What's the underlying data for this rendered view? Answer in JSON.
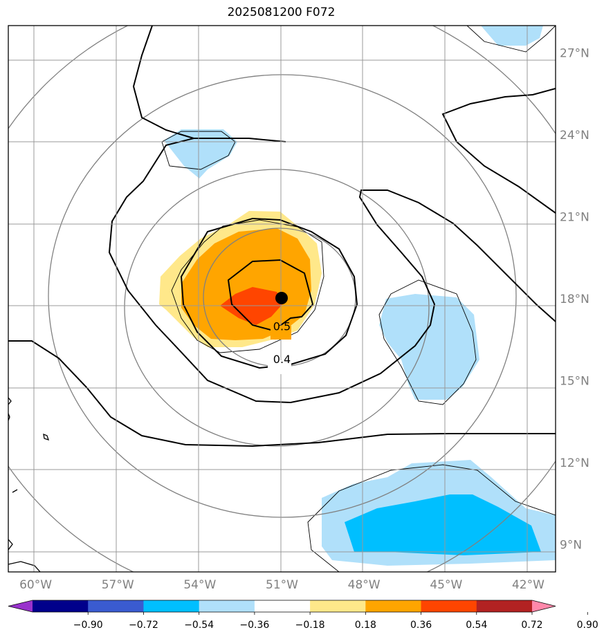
{
  "title": "2025081200 F072",
  "map": {
    "lon_range": [
      -61,
      -41
    ],
    "lat_range": [
      8,
      28
    ],
    "lon_ticks": [
      {
        "value": -60,
        "label": "60°W"
      },
      {
        "value": -57,
        "label": "57°W"
      },
      {
        "value": -54,
        "label": "54°W"
      },
      {
        "value": -51,
        "label": "51°W"
      },
      {
        "value": -48,
        "label": "48°W"
      },
      {
        "value": -45,
        "label": "45°W"
      },
      {
        "value": -42,
        "label": "42°W"
      }
    ],
    "lat_ticks": [
      {
        "value": 9,
        "label": "9°N"
      },
      {
        "value": 12,
        "label": "12°N"
      },
      {
        "value": 15,
        "label": "15°N"
      },
      {
        "value": 18,
        "label": "18°N"
      },
      {
        "value": 21,
        "label": "21°N"
      },
      {
        "value": 24,
        "label": "24°N"
      },
      {
        "value": 27,
        "label": "27°N"
      }
    ],
    "storm_center": {
      "lon": -51,
      "lat": 18.3
    },
    "contour_labels": [
      {
        "text": "0.5",
        "lon": -51,
        "lat": 17.0
      },
      {
        "text": "0.4",
        "lon": -51,
        "lat": 15.8
      }
    ],
    "grid": true
  },
  "colorbar": {
    "ticks": [
      "−0.90",
      "−0.72",
      "−0.54",
      "−0.36",
      "−0.18",
      "0.18",
      "0.36",
      "0.54",
      "0.72",
      "0.90"
    ],
    "colors": [
      "#9932cc",
      "#00008b",
      "#3a5bd0",
      "#00bfff",
      "#b0e0fa",
      "#ffffff",
      "#ffe88a",
      "#ffa500",
      "#ff4500",
      "#b22222",
      "#ff88aa"
    ]
  }
}
